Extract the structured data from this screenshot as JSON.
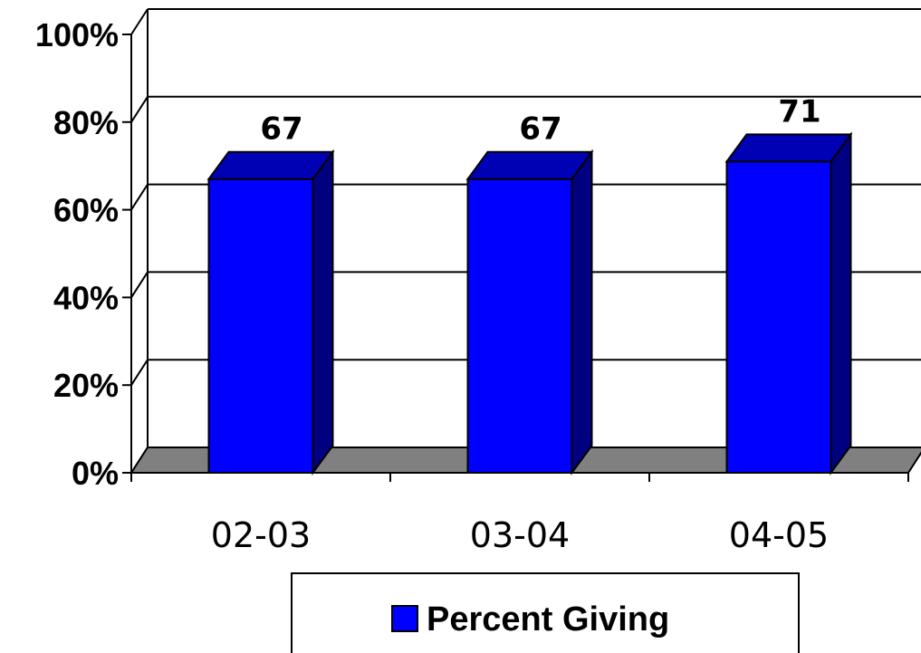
{
  "chart_data": {
    "type": "bar",
    "categories": [
      "02-03",
      "03-04",
      "04-05"
    ],
    "series": [
      {
        "name": "Percent Giving",
        "values": [
          67,
          67,
          71
        ],
        "color": "#0000ff"
      }
    ],
    "data_labels": [
      "67",
      "67",
      "71"
    ],
    "y_ticks": [
      "0%",
      "20%",
      "40%",
      "60%",
      "80%",
      "100%"
    ],
    "ylim": [
      0,
      100
    ],
    "grid": true,
    "three_d": true,
    "legend": {
      "position": "bottom",
      "entries": [
        "Percent Giving"
      ]
    },
    "colors": {
      "bar_front": "#0000ff",
      "bar_side": "#000080",
      "bar_top": "#0000b4",
      "floor": "#808080"
    }
  }
}
